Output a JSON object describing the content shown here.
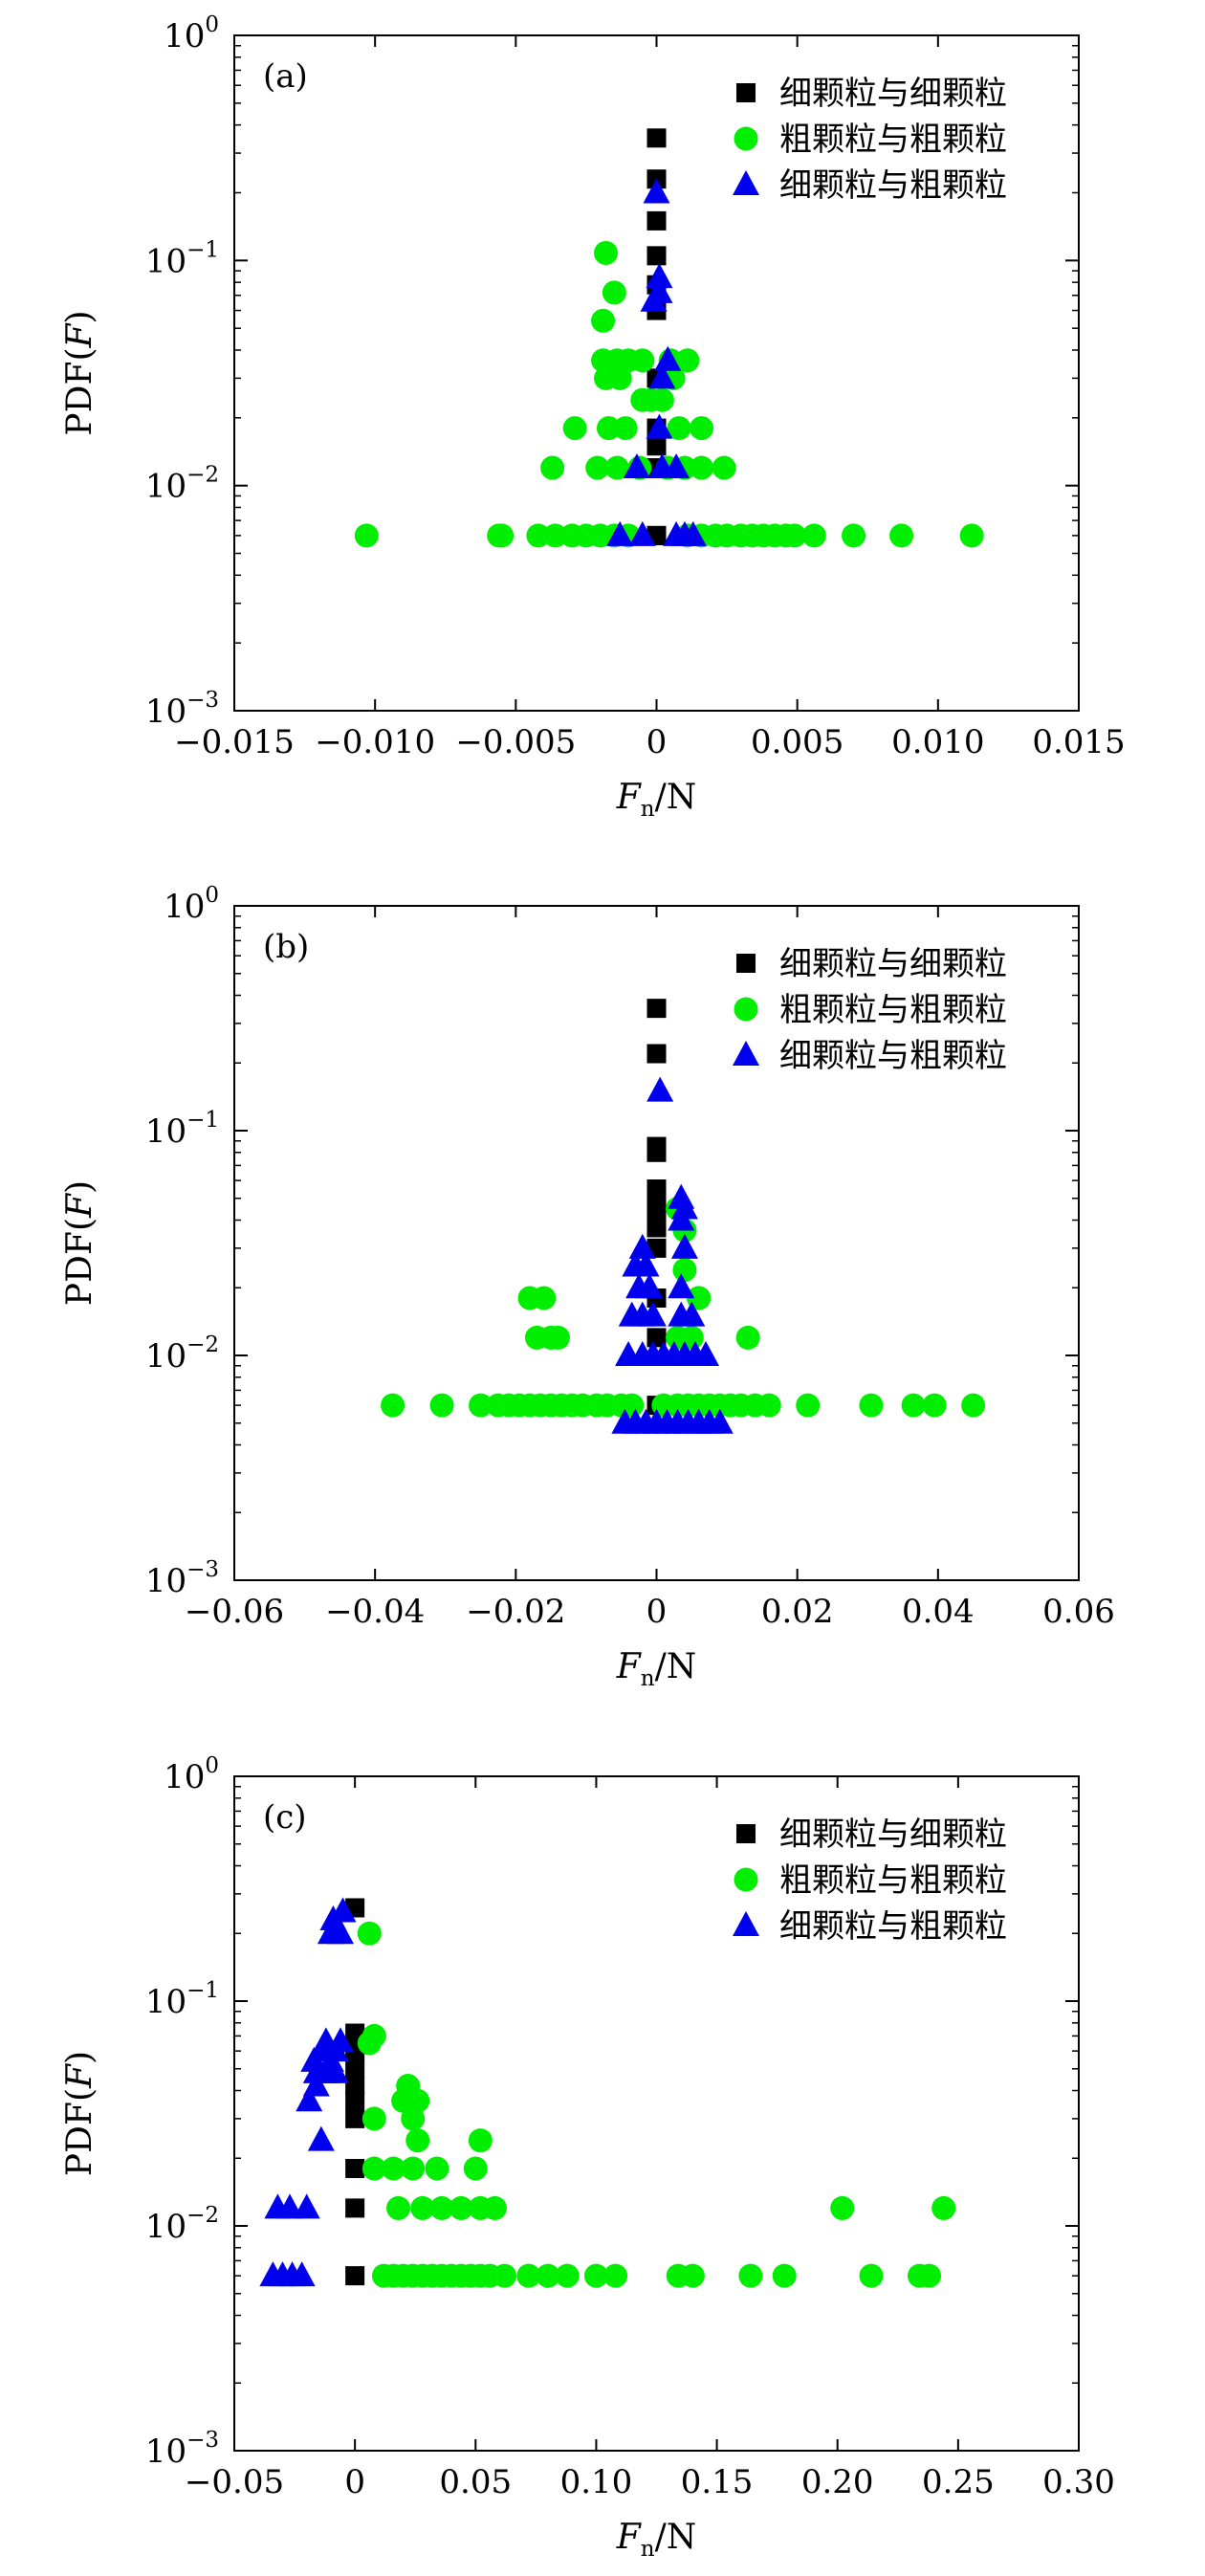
{
  "colors": {
    "fine_fine": "#000000",
    "coarse_coarse": "#00ee00",
    "fine_coarse": "#0000ee",
    "axes": "#000000"
  },
  "legend": [
    "细颗粒与细颗粒",
    "粗颗粒与粗颗粒",
    "细颗粒与粗颗粒"
  ],
  "chart_data": [
    {
      "type": "scatter",
      "panel_label": "(a)",
      "xlabel": "Fn/N",
      "ylabel": "PDF(F)",
      "xlim": [
        -0.015,
        0.015
      ],
      "ylim": [
        0.001,
        1
      ],
      "yscale": "log",
      "grid": false,
      "legend_position": "top-right",
      "x_ticks": [
        "−0.015",
        "−0.010",
        "−0.005",
        "0",
        "0.005",
        "0.010",
        "0.015"
      ],
      "x_tick_values": [
        -0.015,
        -0.01,
        -0.005,
        0,
        0.005,
        0.01,
        0.015
      ],
      "y_ticks": [
        0.001,
        0.01,
        0.1,
        1
      ],
      "series": [
        {
          "name": "细颗粒与细颗粒",
          "marker": "square",
          "x": [
            0,
            0,
            0,
            0,
            0,
            0,
            0,
            0,
            0,
            0,
            0,
            0,
            0,
            0,
            0
          ],
          "y": [
            0.35,
            0.23,
            0.15,
            0.105,
            0.078,
            0.06,
            0.03,
            0.024,
            0.018,
            0.015,
            0.012,
            0.012,
            0.012,
            0.006,
            0.006
          ]
        },
        {
          "name": "粗颗粒与粗颗粒",
          "marker": "circle",
          "x": [
            -0.0103,
            -0.0056,
            -0.0055,
            -0.0042,
            -0.0036,
            -0.003,
            -0.0025,
            -0.002,
            -0.0015,
            -0.001,
            0.0011,
            0.0016,
            0.0021,
            0.0025,
            0.003,
            0.0034,
            0.0038,
            0.0042,
            0.0046,
            0.0049,
            0.0056,
            0.007,
            0.0087,
            0.0112,
            -0.0037,
            -0.0021,
            -0.0014,
            -0.0006,
            0.0004,
            0.001,
            0.0016,
            0.0024,
            -0.0029,
            -0.0017,
            -0.0011,
            0.0008,
            0.0016,
            -0.0005,
            -0.0002,
            0.0002,
            -0.0019,
            -0.0014,
            -0.001,
            -0.0005,
            0.0005,
            0.0011,
            -0.0018,
            -0.0013,
            0.0006,
            -0.0019,
            -0.0015,
            -0.0018
          ],
          "y": [
            0.006,
            0.006,
            0.006,
            0.006,
            0.006,
            0.006,
            0.006,
            0.006,
            0.006,
            0.006,
            0.006,
            0.006,
            0.006,
            0.006,
            0.006,
            0.006,
            0.006,
            0.006,
            0.006,
            0.006,
            0.006,
            0.006,
            0.006,
            0.006,
            0.012,
            0.012,
            0.012,
            0.012,
            0.012,
            0.012,
            0.012,
            0.012,
            0.018,
            0.018,
            0.018,
            0.018,
            0.018,
            0.024,
            0.024,
            0.024,
            0.036,
            0.036,
            0.036,
            0.036,
            0.036,
            0.036,
            0.03,
            0.03,
            0.03,
            0.054,
            0.072,
            0.108
          ]
        },
        {
          "name": "细颗粒与粗颗粒",
          "marker": "triangle",
          "x": [
            -0.0013,
            -0.0005,
            0.0007,
            0.001,
            0.0013,
            -0.0007,
            0.0002,
            0.0007,
            0.0001,
            0.0002,
            0.0004,
            -0.0001,
            0.0001,
            0.0001,
            0.0
          ],
          "y": [
            0.006,
            0.006,
            0.006,
            0.006,
            0.006,
            0.012,
            0.012,
            0.012,
            0.018,
            0.03,
            0.036,
            0.066,
            0.072,
            0.084,
            0.2
          ]
        }
      ]
    },
    {
      "type": "scatter",
      "panel_label": "(b)",
      "xlabel": "Fn/N",
      "ylabel": "PDF(F)",
      "xlim": [
        -0.06,
        0.06
      ],
      "ylim": [
        0.001,
        1
      ],
      "yscale": "log",
      "grid": false,
      "legend_position": "top-right",
      "x_ticks": [
        "−0.06",
        "−0.04",
        "−0.02",
        "0",
        "0.02",
        "0.04",
        "0.06"
      ],
      "x_tick_values": [
        -0.06,
        -0.04,
        -0.02,
        0,
        0.02,
        0.04,
        0.06
      ],
      "y_ticks": [
        0.001,
        0.01,
        0.1,
        1
      ],
      "series": [
        {
          "name": "细颗粒与细颗粒",
          "marker": "square",
          "x": [
            0,
            0,
            0,
            0,
            0,
            0,
            0,
            0,
            0,
            0,
            0,
            0
          ],
          "y": [
            0.35,
            0.22,
            0.085,
            0.08,
            0.055,
            0.05,
            0.045,
            0.037,
            0.03,
            0.018,
            0.012,
            0.006
          ]
        },
        {
          "name": "粗颗粒与粗颗粒",
          "marker": "circle",
          "x": [
            -0.0375,
            -0.0305,
            -0.025,
            -0.0225,
            -0.021,
            -0.0195,
            -0.018,
            -0.0165,
            -0.015,
            -0.0135,
            -0.012,
            -0.0105,
            -0.0085,
            -0.007,
            -0.005,
            -0.0035,
            0.001,
            0.003,
            0.0045,
            0.006,
            0.0075,
            0.009,
            0.0105,
            0.012,
            0.014,
            0.016,
            0.0215,
            0.0305,
            0.0365,
            0.0395,
            0.045,
            -0.017,
            -0.015,
            -0.014,
            0.013,
            -0.018,
            -0.016,
            0.003,
            0.005,
            0.006,
            0.004,
            0.004,
            0.003,
            0.006
          ],
          "y": [
            0.006,
            0.006,
            0.006,
            0.006,
            0.006,
            0.006,
            0.006,
            0.006,
            0.006,
            0.006,
            0.006,
            0.006,
            0.006,
            0.006,
            0.006,
            0.006,
            0.006,
            0.006,
            0.006,
            0.006,
            0.006,
            0.006,
            0.006,
            0.006,
            0.006,
            0.006,
            0.006,
            0.006,
            0.006,
            0.006,
            0.006,
            0.012,
            0.012,
            0.012,
            0.012,
            0.018,
            0.018,
            0.012,
            0.012,
            0.018,
            0.024,
            0.036,
            0.045,
            0.018
          ]
        },
        {
          "name": "细颗粒与粗颗粒",
          "marker": "triangle",
          "x": [
            -0.0045,
            -0.003,
            -0.0015,
            0.0,
            0.0015,
            0.003,
            0.0045,
            0.006,
            0.0075,
            0.009,
            -0.004,
            -0.002,
            -0.0005,
            0.001,
            0.0025,
            0.004,
            0.0055,
            0.007,
            -0.0035,
            -0.002,
            -0.0005,
            0.0035,
            0.005,
            -0.0025,
            -0.001,
            0.0035,
            -0.003,
            -0.0015,
            -0.002,
            0.004,
            0.0035,
            0.004,
            0.0035,
            0.0005
          ],
          "y": [
            0.005,
            0.005,
            0.005,
            0.005,
            0.005,
            0.005,
            0.005,
            0.005,
            0.005,
            0.005,
            0.01,
            0.01,
            0.01,
            0.01,
            0.01,
            0.01,
            0.01,
            0.01,
            0.015,
            0.015,
            0.015,
            0.015,
            0.015,
            0.02,
            0.02,
            0.02,
            0.025,
            0.025,
            0.03,
            0.03,
            0.04,
            0.045,
            0.05,
            0.15
          ]
        }
      ]
    },
    {
      "type": "scatter",
      "panel_label": "(c)",
      "xlabel": "Fn/N",
      "ylabel": "PDF(F)",
      "xlim": [
        -0.05,
        0.3
      ],
      "ylim": [
        0.001,
        1
      ],
      "yscale": "log",
      "grid": false,
      "legend_position": "top-right",
      "x_ticks": [
        "−0.05",
        "0",
        "0.05",
        "0.10",
        "0.15",
        "0.20",
        "0.25",
        "0.30"
      ],
      "x_tick_values": [
        -0.05,
        0,
        0.05,
        0.1,
        0.15,
        0.2,
        0.25,
        0.3
      ],
      "y_ticks": [
        0.001,
        0.01,
        0.1,
        1
      ],
      "series": [
        {
          "name": "细颗粒与细颗粒",
          "marker": "square",
          "x": [
            0,
            0,
            0,
            0,
            0,
            0,
            0,
            0,
            0,
            0
          ],
          "y": [
            0.26,
            0.072,
            0.06,
            0.05,
            0.042,
            0.036,
            0.03,
            0.018,
            0.012,
            0.006
          ]
        },
        {
          "name": "粗颗粒与粗颗粒",
          "marker": "circle",
          "x": [
            0.012,
            0.016,
            0.02,
            0.024,
            0.028,
            0.032,
            0.036,
            0.04,
            0.044,
            0.048,
            0.052,
            0.056,
            0.062,
            0.072,
            0.08,
            0.088,
            0.1,
            0.108,
            0.134,
            0.14,
            0.164,
            0.178,
            0.214,
            0.234,
            0.238,
            0.018,
            0.028,
            0.036,
            0.044,
            0.052,
            0.058,
            0.202,
            0.244,
            0.008,
            0.016,
            0.024,
            0.034,
            0.05,
            0.052,
            0.026,
            0.024,
            0.02,
            0.022,
            0.026,
            0.008,
            0.006,
            0.008,
            0.006
          ],
          "y": [
            0.006,
            0.006,
            0.006,
            0.006,
            0.006,
            0.006,
            0.006,
            0.006,
            0.006,
            0.006,
            0.006,
            0.006,
            0.006,
            0.006,
            0.006,
            0.006,
            0.006,
            0.006,
            0.006,
            0.006,
            0.006,
            0.006,
            0.006,
            0.006,
            0.006,
            0.012,
            0.012,
            0.012,
            0.012,
            0.012,
            0.012,
            0.012,
            0.012,
            0.018,
            0.018,
            0.018,
            0.018,
            0.018,
            0.024,
            0.024,
            0.03,
            0.036,
            0.042,
            0.036,
            0.03,
            0.065,
            0.07,
            0.2
          ]
        },
        {
          "name": "细颗粒与粗颗粒",
          "marker": "triangle",
          "x": [
            -0.034,
            -0.03,
            -0.026,
            -0.022,
            -0.032,
            -0.027,
            -0.02,
            -0.014,
            -0.019,
            -0.016,
            -0.016,
            -0.012,
            -0.008,
            -0.017,
            -0.01,
            -0.014,
            -0.008,
            -0.012,
            -0.006,
            -0.01,
            -0.006,
            -0.009,
            -0.005
          ],
          "y": [
            0.006,
            0.006,
            0.006,
            0.006,
            0.012,
            0.012,
            0.012,
            0.024,
            0.036,
            0.042,
            0.048,
            0.048,
            0.048,
            0.054,
            0.054,
            0.06,
            0.06,
            0.066,
            0.066,
            0.2,
            0.2,
            0.23,
            0.25
          ]
        }
      ]
    }
  ]
}
